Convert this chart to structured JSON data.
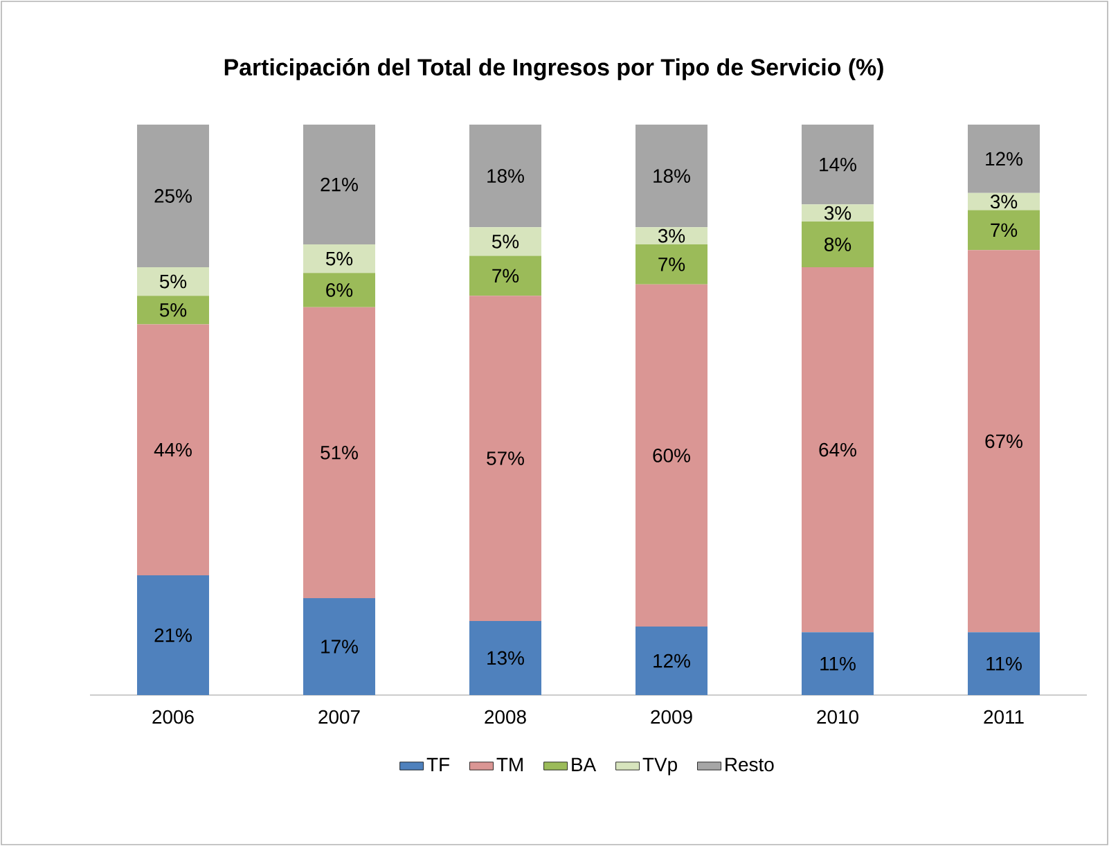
{
  "chart_data": {
    "type": "bar",
    "stacked": true,
    "legend": "bottom",
    "title": "Participación del Total de Ingresos por Tipo de Servicio (%)",
    "categories": [
      "2006",
      "2007",
      "2008",
      "2009",
      "2010",
      "2011"
    ],
    "series": [
      {
        "name": "TF",
        "color": "#4f81bd",
        "values": [
          21,
          17,
          13,
          12,
          11,
          11
        ],
        "value_labels": [
          "21%",
          "17%",
          "13%",
          "12%",
          "11%",
          "11%"
        ]
      },
      {
        "name": "TM",
        "color": "#da9694",
        "values": [
          44,
          51,
          57,
          60,
          64,
          67
        ],
        "value_labels": [
          "44%",
          "51%",
          "57%",
          "60%",
          "64%",
          "67%"
        ]
      },
      {
        "name": "BA",
        "color": "#9bbb59",
        "values": [
          5,
          6,
          7,
          7,
          8,
          7
        ],
        "value_labels": [
          "5%",
          "6%",
          "7%",
          "7%",
          "8%",
          "7%"
        ]
      },
      {
        "name": "TVp",
        "color": "#d7e4bd",
        "values": [
          5,
          5,
          5,
          3,
          3,
          3
        ],
        "value_labels": [
          "5%",
          "5%",
          "5%",
          "3%",
          "3%",
          "3%"
        ]
      },
      {
        "name": "Resto",
        "color": "#a6a6a6",
        "values": [
          25,
          21,
          18,
          18,
          14,
          12
        ],
        "value_labels": [
          "25%",
          "21%",
          "18%",
          "18%",
          "14%",
          "12%"
        ]
      }
    ]
  }
}
